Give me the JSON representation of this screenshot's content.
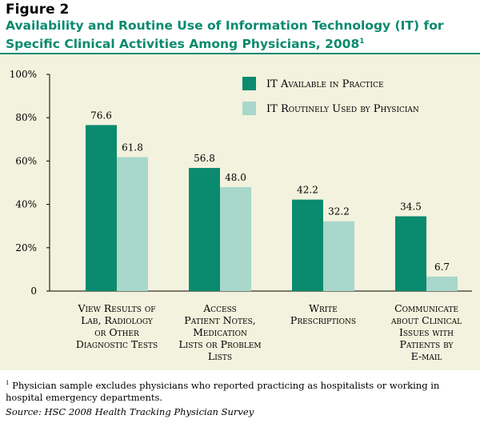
{
  "figure_label": "Figure 2",
  "title": "Availability and Routine Use of Information Technology (IT) for Specific Clinical Activities Among Physicians, 2008",
  "title_footnote_marker": "1",
  "footnote_marker": "1",
  "footnote": "Physician sample excludes physicians who reported practicing as hospitalists or working in hospital emergency departments.",
  "source": "Source: HSC 2008 Health Tracking Physician Survey",
  "colors": {
    "available": "#0a8a6e",
    "used": "#a9d7cb",
    "panel": "#f3f2de",
    "title": "#0a8a6e"
  },
  "chart_data": {
    "type": "bar",
    "categories": [
      [
        "View Results of",
        "Lab, Radiology",
        "or Other",
        "Diagnostic Tests"
      ],
      [
        "Access",
        "Patient Notes,",
        "Medication",
        "Lists or Problem",
        "Lists"
      ],
      [
        "Write",
        "Prescriptions"
      ],
      [
        "Communicate",
        "about Clinical",
        "Issues with",
        "Patients by",
        "E-mail"
      ]
    ],
    "series": [
      {
        "name": "IT Available in Practice",
        "values": [
          76.6,
          56.8,
          42.2,
          34.5
        ],
        "labels": [
          "76.6",
          "56.8",
          "42.2",
          "34.5"
        ]
      },
      {
        "name": "IT Routinely Used by Physician",
        "values": [
          61.8,
          48.0,
          32.2,
          6.7
        ],
        "labels": [
          "61.8",
          "48.0",
          "32.2",
          "6.7"
        ]
      }
    ],
    "y_ticks": [
      "0",
      "20%",
      "40%",
      "60%",
      "80%",
      "100%"
    ],
    "ylim": [
      0,
      100
    ],
    "legend_position": "top-right",
    "grid": false
  }
}
